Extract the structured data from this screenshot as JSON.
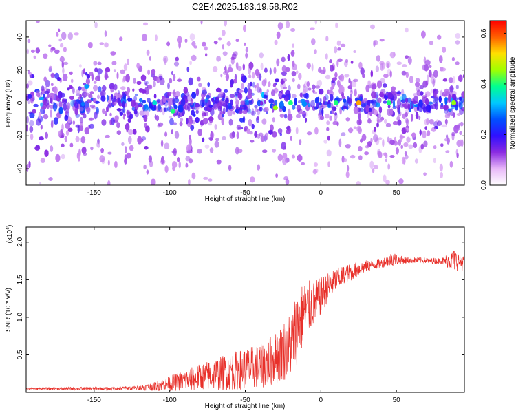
{
  "chart_data": [
    {
      "type": "heatmap",
      "title": "C2E4.2025.183.19.58.R02",
      "xlabel": "Height of straight line (km)",
      "ylabel": "Frequency (Hz)",
      "xlim": [
        -195,
        95
      ],
      "ylim": [
        -50,
        50
      ],
      "xticks": [
        -150,
        -100,
        -50,
        0,
        50
      ],
      "yticks": [
        -40,
        -20,
        0,
        20,
        40
      ],
      "colorbar": {
        "label": "Normalized spectral amplitude",
        "range": [
          0,
          0.65
        ],
        "ticks": [
          0.0,
          0.2,
          0.4,
          0.6
        ],
        "colormap": [
          "#ffffff",
          "#e8b8f8",
          "#8a2be2",
          "#3010ff",
          "#0050ff",
          "#00c8ff",
          "#00ff90",
          "#a0ff00",
          "#ffe000",
          "#ff6000",
          "#ff0000"
        ]
      },
      "features": {
        "band_center_hz": 0,
        "band_halfwidth_hz": 5,
        "hotspots": [
          [
            -155,
            10,
            0.3
          ],
          [
            -110,
            0,
            0.35
          ],
          [
            -98,
            -5,
            0.4
          ],
          [
            -30,
            -3,
            0.45
          ],
          [
            -20,
            0,
            0.4
          ],
          [
            10,
            0,
            0.4
          ],
          [
            25,
            0,
            0.55
          ],
          [
            45,
            0,
            0.4
          ],
          [
            88,
            0,
            0.45
          ]
        ]
      }
    },
    {
      "type": "line",
      "xlabel": "Height of straight line (km)",
      "ylabel": "SNR (10 * v/v)",
      "y_scale_label": "(x10",
      "y_scale_exp": "4",
      "y_scale_close": ")",
      "xlim": [
        -195,
        95
      ],
      "ylim": [
        0,
        2.2
      ],
      "xticks": [
        -150,
        -100,
        -50,
        0,
        50
      ],
      "yticks": [
        0.5,
        1.0,
        1.5,
        2.0
      ],
      "ytick_labels": [
        "0.5",
        "1.0",
        "1.5",
        "2.0"
      ],
      "color": "#e8302a",
      "series": [
        {
          "x": [
            -195,
            -170,
            -140,
            -120,
            -110,
            -100,
            -80,
            -60,
            -40,
            -30,
            -20,
            -15,
            -10,
            -5,
            0,
            5,
            10,
            20,
            30,
            40,
            48,
            52,
            60,
            80,
            88,
            95
          ],
          "y": [
            0.05,
            0.05,
            0.05,
            0.06,
            0.08,
            0.12,
            0.2,
            0.28,
            0.35,
            0.45,
            0.65,
            0.9,
            1.1,
            1.18,
            1.28,
            1.4,
            1.5,
            1.6,
            1.68,
            1.72,
            1.78,
            1.76,
            1.76,
            1.75,
            1.76,
            1.72
          ],
          "noise": [
            0.01,
            0.02,
            0.02,
            0.03,
            0.06,
            0.1,
            0.18,
            0.25,
            0.3,
            0.35,
            0.45,
            0.5,
            0.4,
            0.3,
            0.25,
            0.2,
            0.15,
            0.12,
            0.08,
            0.06,
            0.1,
            0.06,
            0.04,
            0.04,
            0.15,
            0.1
          ]
        }
      ]
    }
  ]
}
